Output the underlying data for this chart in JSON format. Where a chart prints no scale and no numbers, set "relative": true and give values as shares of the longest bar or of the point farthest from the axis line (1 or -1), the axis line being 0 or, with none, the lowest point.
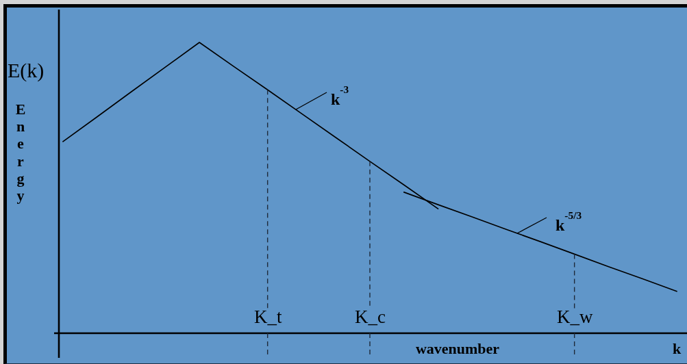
{
  "chart_data": {
    "type": "line",
    "relative": true,
    "xlabel": "wavenumber",
    "ylabel": "Energy",
    "categories": [
      null,
      null,
      null,
      null,
      null,
      null,
      "K_t",
      null,
      null,
      "K_c",
      null,
      null,
      null,
      null,
      null,
      "K_w",
      null,
      null,
      null
    ],
    "series": [
      {
        "color": "#000000",
        "values": [
          0.659,
          0.744,
          0.83,
          0.915,
          1,
          0.918,
          0.837,
          0.755,
          0.673,
          0.591,
          0.51,
          0.428,
          null,
          null,
          null,
          null,
          null,
          null,
          null
        ]
      },
      {
        "color": "#000000",
        "values": [
          null,
          null,
          null,
          null,
          null,
          null,
          null,
          null,
          null,
          null,
          0.485,
          0.442,
          0.4,
          0.357,
          0.315,
          0.272,
          0.229,
          0.187,
          0.144
        ]
      }
    ],
    "ref_lines": [
      {
        "axis": "x",
        "value": "K_t",
        "color": "#1e2a3a",
        "line_style": "dashed"
      },
      {
        "axis": "x",
        "value": "K_c",
        "color": "#1e2a3a",
        "line_style": "dashed"
      },
      {
        "axis": "x",
        "value": "K_w",
        "color": "#1e2a3a",
        "line_style": "dashed"
      }
    ],
    "annotations": [
      "E(k)",
      "k",
      "k$^{-3}$",
      "k$^{-5/3}$"
    ]
  }
}
